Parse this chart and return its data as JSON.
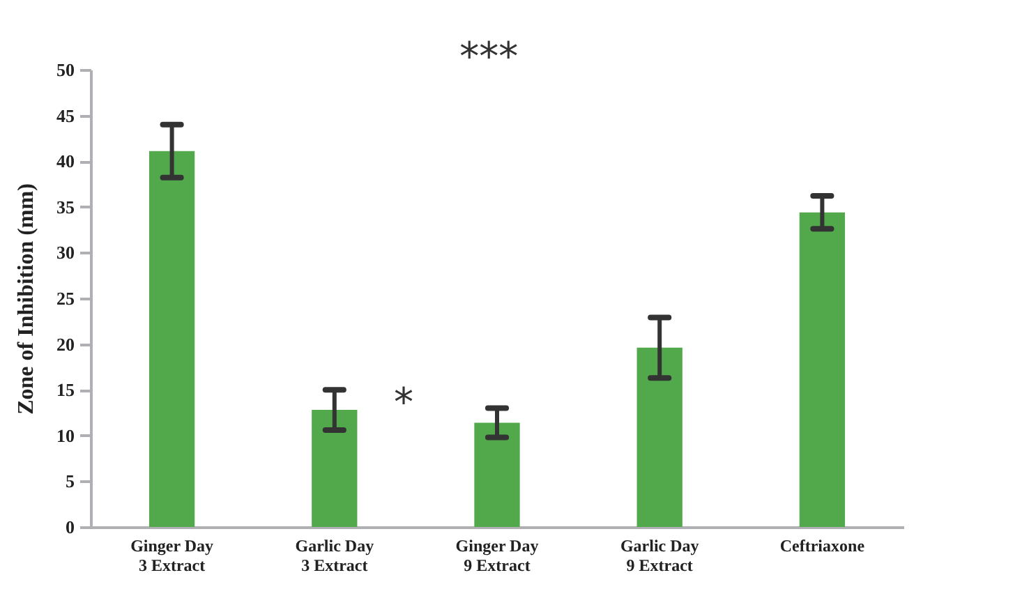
{
  "chart_data": {
    "type": "bar",
    "ylabel": "Zone of Inhibition (mm)",
    "categories": [
      "Ginger Day 3 Extract",
      "Garlic Day 3 Extract",
      "Ginger Day 9 Extract",
      "Garlic Day 9 Extract",
      "Ceftriaxone"
    ],
    "values": [
      41.1,
      12.8,
      11.4,
      19.6,
      34.4
    ],
    "errors": [
      2.9,
      2.2,
      1.6,
      3.3,
      1.8
    ],
    "color": "#52a94b",
    "ylim": [
      0,
      50
    ],
    "yticks": [
      0,
      5,
      10,
      15,
      20,
      25,
      30,
      35,
      40,
      45,
      50
    ],
    "grid": false,
    "annotations": [
      "***",
      "*"
    ]
  }
}
